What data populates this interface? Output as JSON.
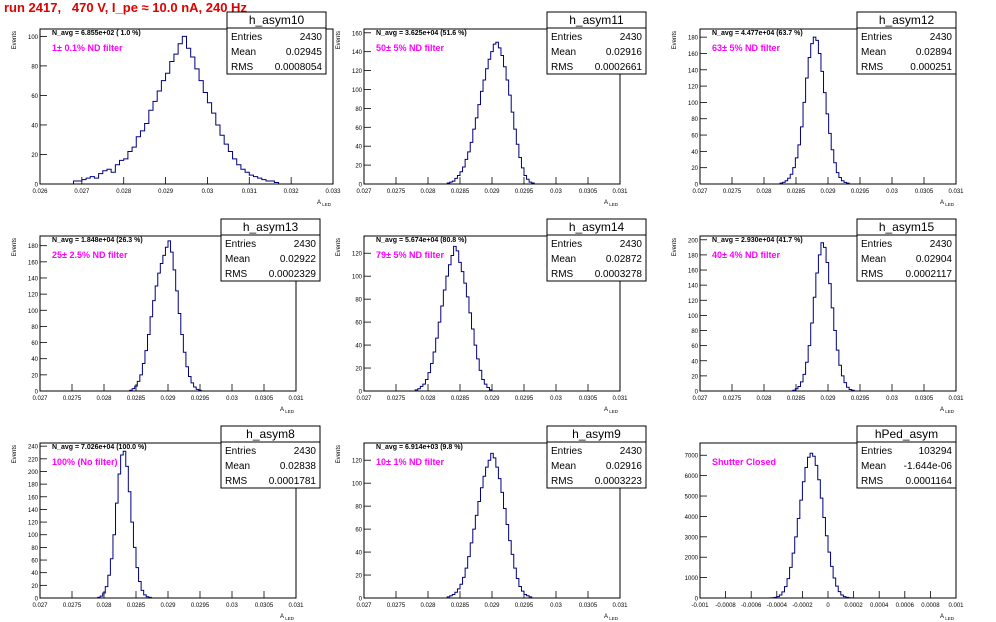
{
  "title": "run 2417,   470 V, I_pe ≈ 10.0 nA, 240 Hz",
  "chart_data": [
    {
      "type": "bar",
      "name": "h_asym10",
      "entries": "2430",
      "mean": "0.02945",
      "rms": "0.0008054",
      "navg": "N_avg = 6.855e+02 ( 1.0 %)",
      "filter": "1± 0.1% ND filter",
      "xlabel": "A_LED",
      "ylabel": "Events",
      "xlim": [
        0.026,
        0.033
      ],
      "ylim": [
        0,
        105
      ],
      "xticks": [
        "0.026",
        "0.027",
        "0.028",
        "0.029",
        "0.03",
        "0.031",
        "0.032",
        "0.033"
      ],
      "xtickvals": [
        0.026,
        0.027,
        0.028,
        0.029,
        0.03,
        0.031,
        0.032,
        0.033
      ],
      "yticks": [
        0,
        20,
        40,
        60,
        80,
        100
      ],
      "bins_x0": 0.0268,
      "bin_width": 0.0001,
      "values": [
        2,
        2,
        3,
        4,
        5,
        4,
        7,
        9,
        10,
        8,
        13,
        16,
        17,
        22,
        25,
        32,
        36,
        41,
        50,
        56,
        63,
        70,
        75,
        83,
        88,
        95,
        100,
        92,
        86,
        78,
        70,
        62,
        55,
        48,
        40,
        33,
        27,
        22,
        17,
        13,
        10,
        8,
        6,
        5,
        4,
        3,
        2,
        2,
        1
      ]
    },
    {
      "type": "bar",
      "name": "h_asym11",
      "entries": "2430",
      "mean": "0.02916",
      "rms": "0.0002661",
      "navg": "N_avg = 3.625e+04 (51.6 %)",
      "filter": "50± 5% ND filter",
      "xlabel": "A_LED",
      "ylabel": "Events",
      "xlim": [
        0.027,
        0.031
      ],
      "ylim": [
        0,
        164
      ],
      "xticks": [
        "0.027",
        "0.0275",
        "0.028",
        "0.0285",
        "0.029",
        "0.0295",
        "0.03",
        "0.0305",
        "0.031"
      ],
      "xtickvals": [
        0.027,
        0.0275,
        0.028,
        0.0285,
        0.029,
        0.0295,
        0.03,
        0.0305,
        0.031
      ],
      "yticks": [
        0,
        20,
        40,
        60,
        80,
        100,
        120,
        140,
        160
      ],
      "bins_x0": 0.0283,
      "bin_width": 4e-05,
      "values": [
        1,
        2,
        3,
        6,
        9,
        13,
        18,
        26,
        34,
        44,
        58,
        70,
        84,
        98,
        110,
        122,
        132,
        140,
        148,
        150,
        144,
        136,
        124,
        110,
        94,
        76,
        58,
        42,
        28,
        17,
        9,
        5,
        2,
        1
      ]
    },
    {
      "type": "bar",
      "name": "h_asym12",
      "entries": "2430",
      "mean": "0.02894",
      "rms": "0.000251",
      "navg": "N_avg = 4.477e+04 (63.7 %)",
      "filter": "63± 5% ND filter",
      "xlabel": "A_LED",
      "ylabel": "Events",
      "xlim": [
        0.027,
        0.031
      ],
      "ylim": [
        0,
        190
      ],
      "xticks": [
        "0.027",
        "0.0275",
        "0.028",
        "0.0285",
        "0.029",
        "0.0295",
        "0.03",
        "0.0305",
        "0.031"
      ],
      "xtickvals": [
        0.027,
        0.0275,
        0.028,
        0.0285,
        0.029,
        0.0295,
        0.03,
        0.0305,
        0.031
      ],
      "yticks": [
        0,
        20,
        40,
        60,
        80,
        100,
        120,
        140,
        160,
        180
      ],
      "bins_x0": 0.02825,
      "bin_width": 4e-05,
      "values": [
        1,
        2,
        4,
        7,
        12,
        20,
        32,
        48,
        70,
        100,
        130,
        155,
        172,
        180,
        176,
        160,
        138,
        112,
        86,
        62,
        42,
        26,
        14,
        8,
        4,
        2,
        1
      ]
    },
    {
      "type": "bar",
      "name": "h_asym13",
      "entries": "2430",
      "mean": "0.02922",
      "rms": "0.0002329",
      "navg": "N_avg = 1.848e+04 (26.3 %)",
      "filter": "25± 2.5% ND filter",
      "xlabel": "A_LED",
      "ylabel": "Events",
      "xlim": [
        0.027,
        0.031
      ],
      "ylim": [
        0,
        192
      ],
      "xticks": [
        "0.027",
        "0.0275",
        "0.028",
        "0.0285",
        "0.029",
        "0.0295",
        "0.03",
        "0.0305",
        "0.031"
      ],
      "xtickvals": [
        0.027,
        0.0275,
        0.028,
        0.0285,
        0.029,
        0.0295,
        0.03,
        0.0305,
        0.031
      ],
      "yticks": [
        0,
        20,
        40,
        60,
        80,
        100,
        120,
        140,
        160,
        180
      ],
      "bins_x0": 0.0284,
      "bin_width": 4e-05,
      "values": [
        1,
        3,
        6,
        12,
        20,
        34,
        50,
        70,
        92,
        112,
        130,
        146,
        158,
        168,
        178,
        186,
        172,
        150,
        124,
        96,
        70,
        48,
        30,
        18,
        10,
        5,
        2,
        1
      ]
    },
    {
      "type": "bar",
      "name": "h_asym14",
      "entries": "2430",
      "mean": "0.02872",
      "rms": "0.0003278",
      "navg": "N_avg = 5.674e+04 (80.8 %)",
      "filter": "79± 5% ND filter",
      "xlabel": "A_LED",
      "ylabel": "Events",
      "xlim": [
        0.027,
        0.031
      ],
      "ylim": [
        0,
        135
      ],
      "xticks": [
        "0.027",
        "0.0275",
        "0.028",
        "0.0285",
        "0.029",
        "0.0295",
        "0.03",
        "0.0305",
        "0.031"
      ],
      "xtickvals": [
        0.027,
        0.0275,
        0.028,
        0.0285,
        0.029,
        0.0295,
        0.03,
        0.0305,
        0.031
      ],
      "yticks": [
        0,
        20,
        40,
        60,
        80,
        100,
        120
      ],
      "bins_x0": 0.0278,
      "bin_width": 4e-05,
      "values": [
        1,
        2,
        4,
        6,
        10,
        16,
        24,
        34,
        46,
        60,
        74,
        88,
        100,
        110,
        118,
        126,
        122,
        112,
        104,
        94,
        82,
        68,
        54,
        40,
        28,
        18,
        10,
        6,
        3,
        1
      ]
    },
    {
      "type": "bar",
      "name": "h_asym15",
      "entries": "2430",
      "mean": "0.02904",
      "rms": "0.0002117",
      "navg": "N_avg = 2.930e+04 (41.7 %)",
      "filter": "40± 4% ND filter",
      "xlabel": "A_LED",
      "ylabel": "Events",
      "xlim": [
        0.027,
        0.031
      ],
      "ylim": [
        0,
        205
      ],
      "xticks": [
        "0.027",
        "0.0275",
        "0.028",
        "0.0285",
        "0.029",
        "0.0295",
        "0.03",
        "0.0305",
        "0.031"
      ],
      "xtickvals": [
        0.027,
        0.0275,
        0.028,
        0.0285,
        0.029,
        0.0295,
        0.03,
        0.0305,
        0.031
      ],
      "yticks": [
        0,
        20,
        40,
        60,
        80,
        100,
        120,
        140,
        160,
        180,
        200
      ],
      "bins_x0": 0.02845,
      "bin_width": 4e-05,
      "values": [
        1,
        3,
        6,
        12,
        22,
        38,
        60,
        90,
        124,
        156,
        180,
        196,
        190,
        170,
        142,
        110,
        80,
        54,
        34,
        20,
        11,
        5,
        2,
        1
      ]
    },
    {
      "type": "bar",
      "name": "h_asym8",
      "entries": "2430",
      "mean": "0.02838",
      "rms": "0.0001781",
      "navg": "N_avg = 7.026e+04 (100.0 %)",
      "filter": "100% (No filter)",
      "xlabel": "A_LED",
      "ylabel": "Events",
      "xlim": [
        0.027,
        0.031
      ],
      "ylim": [
        0,
        245
      ],
      "xticks": [
        "0.027",
        "0.0275",
        "0.028",
        "0.0285",
        "0.029",
        "0.0295",
        "0.03",
        "0.0305",
        "0.031"
      ],
      "xtickvals": [
        0.027,
        0.0275,
        0.028,
        0.0285,
        0.029,
        0.0295,
        0.03,
        0.0305,
        0.031
      ],
      "yticks": [
        0,
        20,
        40,
        60,
        80,
        100,
        120,
        140,
        160,
        180,
        200,
        220,
        240
      ],
      "bins_x0": 0.0279,
      "bin_width": 4e-05,
      "values": [
        1,
        3,
        8,
        18,
        36,
        62,
        100,
        150,
        196,
        226,
        232,
        208,
        168,
        120,
        80,
        48,
        26,
        12,
        5,
        2,
        1
      ]
    },
    {
      "type": "bar",
      "name": "h_asym9",
      "entries": "2430",
      "mean": "0.02916",
      "rms": "0.0003223",
      "navg": "N_avg = 6.914e+03 (9.8 %)",
      "filter": "10± 1% ND filter",
      "xlabel": "A_LED",
      "ylabel": "Events",
      "xlim": [
        0.027,
        0.031
      ],
      "ylim": [
        0,
        135
      ],
      "xticks": [
        "0.027",
        "0.0275",
        "0.028",
        "0.0285",
        "0.029",
        "0.0295",
        "0.03",
        "0.0305",
        "0.031"
      ],
      "xtickvals": [
        0.027,
        0.0275,
        0.028,
        0.0285,
        0.029,
        0.0295,
        0.03,
        0.0305,
        0.031
      ],
      "yticks": [
        0,
        20,
        40,
        60,
        80,
        100,
        120
      ],
      "bins_x0": 0.0283,
      "bin_width": 4e-05,
      "values": [
        1,
        2,
        3,
        5,
        8,
        12,
        18,
        26,
        36,
        48,
        60,
        72,
        84,
        96,
        106,
        114,
        120,
        126,
        122,
        114,
        104,
        92,
        78,
        64,
        50,
        38,
        26,
        17,
        10,
        6,
        3,
        2,
        1
      ]
    },
    {
      "type": "bar",
      "name": "hPed_asym",
      "entries": "103294",
      "mean": "-1.644e-06",
      "rms": "0.0001164",
      "navg": "",
      "filter": "Shutter Closed",
      "xlabel": "A_LED",
      "ylabel": "",
      "xlim": [
        -0.001,
        0.001
      ],
      "ylim": [
        0,
        7600
      ],
      "xticks": [
        "-0.001",
        "-0.0008",
        "-0.0006",
        "-0.0004",
        "-0.0002",
        "0",
        "0.0002",
        "0.0004",
        "0.0006",
        "0.0008",
        "0.001"
      ],
      "xtickvals": [
        -0.001,
        -0.0008,
        -0.0006,
        -0.0004,
        -0.0002,
        0,
        0.0002,
        0.0004,
        0.0006,
        0.0008,
        0.001
      ],
      "yticks": [
        0,
        1000,
        2000,
        3000,
        4000,
        5000,
        6000,
        7000
      ],
      "bins_x0": -0.00046,
      "bin_width": 2e-05,
      "values": [
        5,
        12,
        30,
        70,
        150,
        300,
        560,
        950,
        1500,
        2200,
        3000,
        3900,
        4800,
        5700,
        6400,
        6900,
        7100,
        6950,
        6500,
        5800,
        4900,
        3950,
        3050,
        2250,
        1550,
        980,
        580,
        310,
        150,
        70,
        30,
        12,
        5
      ]
    }
  ]
}
